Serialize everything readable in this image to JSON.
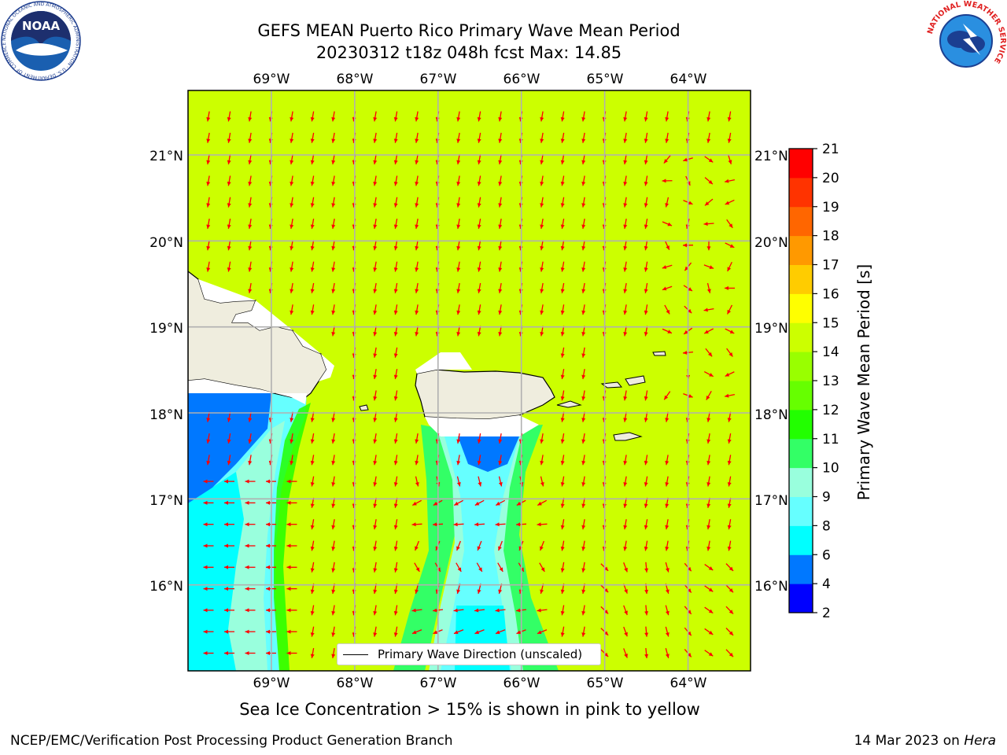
{
  "header": {
    "title_line1": "GEFS MEAN Puerto Rico Primary Wave Mean Period",
    "title_line2": "20230312 t18z 048h fcst   Max: 14.85"
  },
  "map": {
    "lon_ticks": [
      "69°W",
      "68°W",
      "67°W",
      "66°W",
      "65°W",
      "64°W"
    ],
    "lat_ticks": [
      "21°N",
      "20°N",
      "19°N",
      "18°N",
      "17°N",
      "16°N"
    ],
    "lon_range": [
      -70.0,
      -63.25
    ],
    "lat_range": [
      15.0,
      21.75
    ],
    "field": "Primary Wave Mean Period",
    "arrow_color": "#ff0000",
    "land_color": "#efedde",
    "background_value_color": "#ccff00"
  },
  "legend": {
    "label": "Primary Wave Direction (unscaled)"
  },
  "colorbar": {
    "label": "Primary Wave Mean Period [s]",
    "levels": [
      "2",
      "4",
      "6",
      "8",
      "9",
      "10",
      "11",
      "12",
      "13",
      "14",
      "15",
      "16",
      "17",
      "18",
      "19",
      "20",
      "21"
    ],
    "colors": [
      "#0000ff",
      "#0078ff",
      "#00ffff",
      "#66ffff",
      "#99ffdd",
      "#33ff66",
      "#22ff00",
      "#66ff00",
      "#99ff00",
      "#ccff00",
      "#ffff00",
      "#ffcc00",
      "#ff9900",
      "#ff6600",
      "#ff3300",
      "#ff0000"
    ]
  },
  "caption": "Sea Ice Concentration > 15% is shown in pink to yellow",
  "footer": {
    "left": "NCEP/EMC/Verification Post Processing Product Generation Branch",
    "right_date": "14 Mar 2023 on ",
    "right_host": "Hera"
  },
  "logos": {
    "noaa": {
      "text": "NOAA",
      "ring_text": "NATIONAL OCEANIC AND ATMOSPHERIC ADMINISTRATION · U.S. DEPARTMENT OF COMMERCE"
    },
    "nws": {
      "ring_text": "NATIONAL WEATHER SERVICE"
    }
  }
}
